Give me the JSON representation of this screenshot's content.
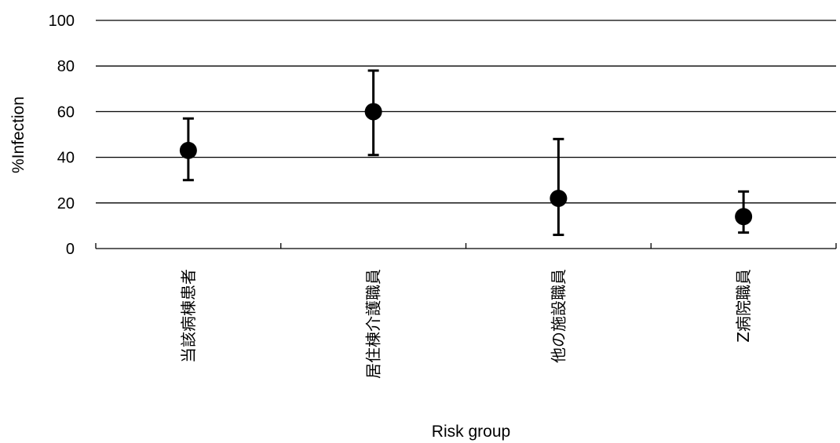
{
  "chart_data": {
    "type": "scatter",
    "title": "",
    "xlabel": "Risk group",
    "ylabel": "%Infection",
    "ylim": [
      0,
      100
    ],
    "yticks": [
      0,
      20,
      40,
      60,
      80,
      100
    ],
    "grid": "horizontal",
    "legend": "none",
    "categories": [
      "当該病棟患者",
      "居住棟介護職員",
      "他の施設職員",
      "Z病院職員"
    ],
    "series": [
      {
        "values": [
          43,
          60,
          22,
          14
        ],
        "error_low": [
          30,
          41,
          6,
          7
        ],
        "error_high": [
          57,
          78,
          48,
          25
        ]
      }
    ],
    "colors": {
      "marker": "#000000",
      "gridline": "#000000"
    }
  }
}
